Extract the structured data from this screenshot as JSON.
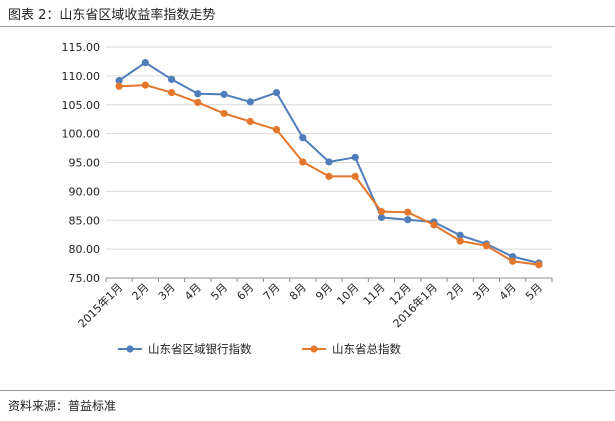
{
  "figure": {
    "title": "图表 2：山东省区域收益率指数走势",
    "source": "资料来源：普益标准"
  },
  "chart_data": {
    "type": "line",
    "title": "",
    "xlabel": "",
    "ylabel": "",
    "ylim": [
      75.0,
      115.0
    ],
    "ytick_step": 5,
    "ytick_decimals": 2,
    "grid": "horizontal",
    "legend_position": "bottom",
    "categories": [
      "2015年1月",
      "2月",
      "3月",
      "4月",
      "5月",
      "6月",
      "7月",
      "8月",
      "9月",
      "10月",
      "11月",
      "12月",
      "2016年1月",
      "2月",
      "3月",
      "4月",
      "5月"
    ],
    "series": [
      {
        "name": "山东省区域银行指数",
        "color": "#4F7EBB",
        "marker": "circle",
        "values": [
          109.2,
          112.3,
          109.4,
          106.9,
          106.8,
          105.5,
          107.1,
          99.3,
          95.1,
          95.9,
          85.5,
          85.1,
          84.7,
          82.4,
          80.9,
          78.7,
          77.6
        ]
      },
      {
        "name": "山东省总指数",
        "color": "#E4772C",
        "marker": "circle",
        "values": [
          108.2,
          108.4,
          107.1,
          105.4,
          103.5,
          102.1,
          100.7,
          95.1,
          92.6,
          92.6,
          86.5,
          86.4,
          84.2,
          81.4,
          80.6,
          77.9,
          77.3
        ]
      }
    ]
  }
}
